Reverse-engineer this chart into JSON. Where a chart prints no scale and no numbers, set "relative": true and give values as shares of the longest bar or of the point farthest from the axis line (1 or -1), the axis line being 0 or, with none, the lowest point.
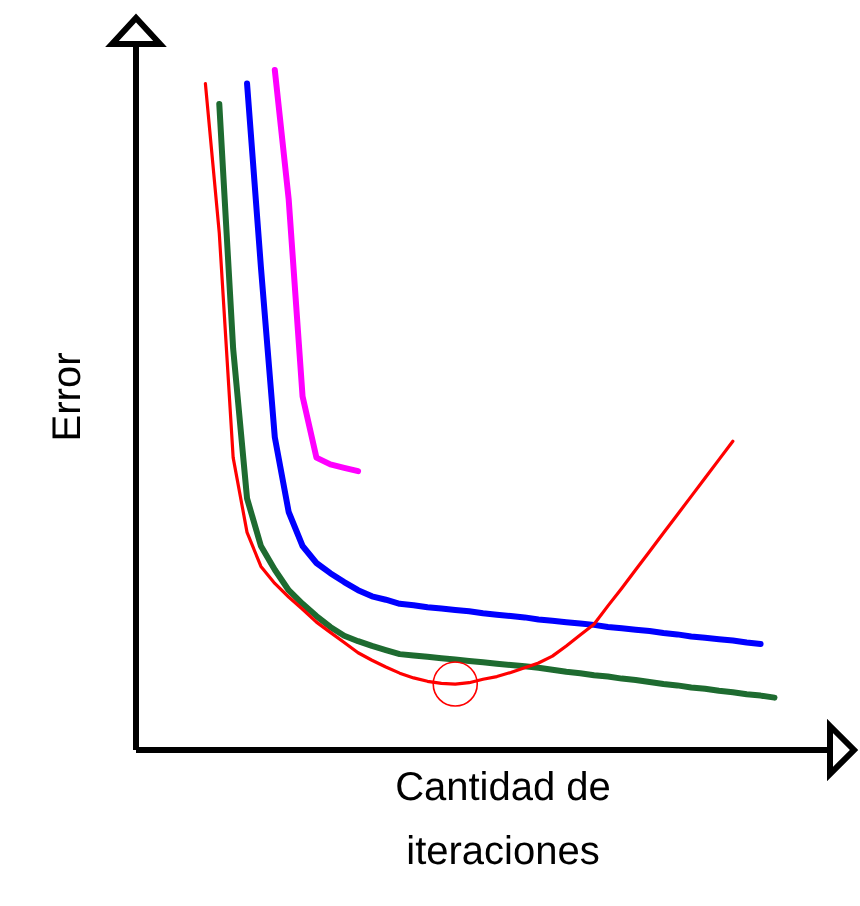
{
  "chart_data": {
    "type": "line",
    "relative": true,
    "xlabel": "Cantidad de iteraciones",
    "ylabel": "Error",
    "categories": [
      null,
      null,
      null,
      null,
      null,
      null,
      null,
      null,
      null,
      null,
      null,
      null,
      null,
      null,
      null,
      null,
      null,
      null,
      null,
      null,
      null,
      null,
      null,
      null,
      null,
      null,
      null,
      null,
      null,
      null,
      null,
      null,
      null,
      null,
      null,
      null,
      null,
      null,
      null,
      null,
      null,
      null,
      null,
      null,
      null,
      null,
      null,
      null,
      null,
      null,
      null
    ],
    "series": [
      {
        "color": "#ff00ff",
        "values": [
          null,
          null,
          null,
          null,
          null,
          null,
          null,
          null,
          null,
          null,
          1.0,
          0.81,
          0.52,
          0.43,
          0.42,
          0.415,
          0.41,
          null,
          null,
          null,
          null,
          null,
          null,
          null,
          null,
          null,
          null,
          null,
          null,
          null,
          null,
          null,
          null,
          null,
          null,
          null,
          null,
          null,
          null,
          null,
          null,
          null,
          null,
          null,
          null,
          null,
          null,
          null,
          null,
          null,
          null
        ]
      },
      {
        "color": "#0000ff",
        "values": [
          null,
          null,
          null,
          null,
          null,
          null,
          null,
          null,
          0.98,
          0.71,
          0.46,
          0.35,
          0.3,
          0.275,
          0.26,
          0.247,
          0.235,
          0.226,
          0.221,
          0.215,
          0.213,
          0.21,
          0.208,
          0.206,
          0.204,
          0.201,
          0.199,
          0.197,
          0.195,
          0.192,
          0.19,
          0.188,
          0.186,
          0.184,
          0.181,
          0.179,
          0.177,
          0.175,
          0.172,
          0.17,
          0.167,
          0.165,
          0.163,
          0.161,
          0.158,
          0.156,
          null,
          null,
          null,
          null,
          null
        ]
      },
      {
        "color": "#1e6b30",
        "values": [
          null,
          null,
          null,
          null,
          null,
          null,
          0.95,
          0.59,
          0.37,
          0.3,
          0.265,
          0.235,
          0.215,
          0.197,
          0.181,
          0.168,
          0.16,
          0.153,
          0.147,
          0.141,
          0.139,
          0.137,
          0.135,
          0.133,
          0.131,
          0.129,
          0.127,
          0.125,
          0.123,
          0.121,
          0.118,
          0.115,
          0.113,
          0.11,
          0.108,
          0.105,
          0.103,
          0.1,
          0.097,
          0.095,
          0.092,
          0.09,
          0.087,
          0.085,
          0.082,
          0.08,
          0.077,
          null,
          null,
          null,
          null
        ]
      },
      {
        "color": "#ff0000",
        "values": [
          null,
          null,
          null,
          null,
          null,
          0.98,
          0.76,
          0.43,
          0.32,
          0.27,
          0.245,
          0.225,
          0.207,
          0.188,
          0.173,
          0.158,
          0.143,
          0.132,
          0.122,
          0.113,
          0.106,
          0.101,
          0.098,
          0.097,
          0.099,
          0.104,
          0.108,
          0.114,
          0.121,
          0.128,
          0.138,
          0.153,
          0.169,
          0.185,
          0.212,
          0.238,
          0.265,
          0.292,
          0.319,
          0.346,
          0.373,
          0.4,
          0.427,
          0.454,
          null,
          null,
          null,
          null,
          null,
          null,
          null
        ]
      }
    ]
  }
}
